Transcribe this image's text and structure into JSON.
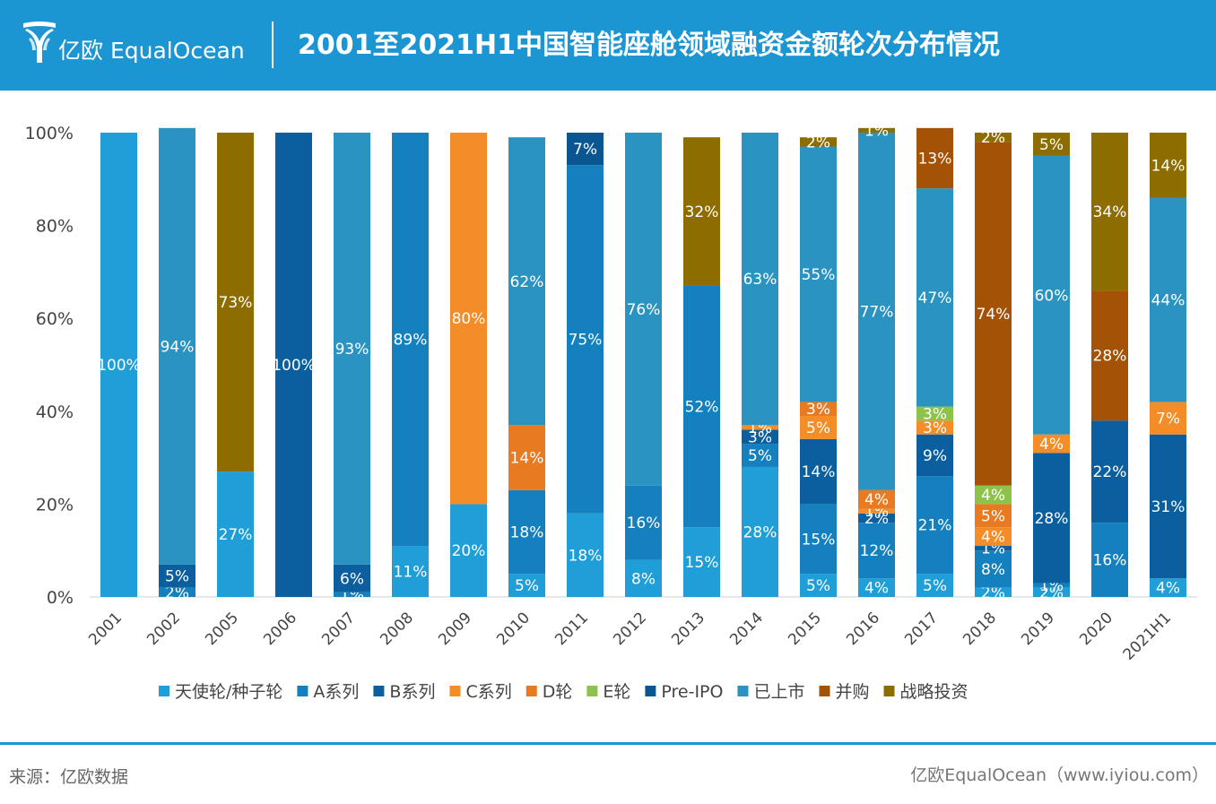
{
  "header": {
    "brand": "亿欧 EqualOcean",
    "title": "2001至2021H1中国智能座舱领域融资金额轮次分布情况"
  },
  "footer": {
    "source": "来源：亿欧数据",
    "credit": "亿欧EqualOcean（www.iyiou.com）"
  },
  "colors": {
    "header_bg": "#1b96d3"
  },
  "chart_data": {
    "type": "bar",
    "stacked": true,
    "ylim": [
      0,
      100
    ],
    "y_ticks": [
      "0%",
      "20%",
      "40%",
      "60%",
      "80%",
      "100%"
    ],
    "categories": [
      "2001",
      "2002",
      "2005",
      "2006",
      "2007",
      "2008",
      "2009",
      "2010",
      "2011",
      "2012",
      "2013",
      "2014",
      "2015",
      "2016",
      "2017",
      "2018",
      "2019",
      "2020",
      "2021H1"
    ],
    "legend_position": "bottom",
    "series": [
      {
        "name": "天使轮/种子轮",
        "color": "#1f9ed8",
        "values": [
          100,
          0,
          27,
          0,
          0,
          11,
          20,
          5,
          18,
          8,
          15,
          28,
          5,
          4,
          5,
          2,
          2,
          0,
          4
        ]
      },
      {
        "name": "A系列",
        "color": "#1480be",
        "values": [
          0,
          2,
          0,
          0,
          1,
          89,
          0,
          18,
          75,
          16,
          52,
          5,
          15,
          12,
          21,
          8,
          1,
          16,
          0
        ]
      },
      {
        "name": "B系列",
        "color": "#0b5f9e",
        "values": [
          0,
          5,
          0,
          100,
          6,
          0,
          0,
          0,
          0,
          0,
          0,
          3,
          14,
          2,
          9,
          1,
          28,
          22,
          31
        ]
      },
      {
        "name": "C系列",
        "color": "#f48c27",
        "values": [
          0,
          0,
          0,
          0,
          0,
          0,
          80,
          0,
          0,
          0,
          0,
          1,
          5,
          1,
          3,
          4,
          4,
          0,
          7
        ]
      },
      {
        "name": "D轮",
        "color": "#e87a22",
        "values": [
          0,
          0,
          0,
          0,
          0,
          0,
          0,
          14,
          0,
          0,
          0,
          0,
          3,
          4,
          0,
          5,
          0,
          0,
          0
        ]
      },
      {
        "name": "E轮",
        "color": "#8dc24b",
        "values": [
          0,
          0,
          0,
          0,
          0,
          0,
          0,
          0,
          0,
          0,
          0,
          0,
          0,
          0,
          3,
          4,
          0,
          0,
          0
        ]
      },
      {
        "name": "Pre-IPO",
        "color": "#0a5690",
        "values": [
          0,
          0,
          0,
          0,
          0,
          0,
          0,
          0,
          7,
          0,
          0,
          0,
          0,
          0,
          0,
          0,
          0,
          0,
          0
        ]
      },
      {
        "name": "已上市",
        "color": "#2b93c1",
        "values": [
          0,
          94,
          0,
          0,
          93,
          0,
          0,
          62,
          0,
          76,
          0,
          63,
          55,
          77,
          47,
          0,
          60,
          0,
          44
        ]
      },
      {
        "name": "并购",
        "color": "#a45206",
        "values": [
          0,
          0,
          0,
          0,
          0,
          0,
          0,
          0,
          0,
          0,
          0,
          0,
          0,
          0,
          13,
          74,
          0,
          28,
          0
        ]
      },
      {
        "name": "战略投资",
        "color": "#8d6c00",
        "values": [
          0,
          0,
          73,
          0,
          0,
          0,
          0,
          0,
          0,
          0,
          32,
          0,
          2,
          1,
          0,
          2,
          5,
          34,
          14
        ]
      }
    ]
  }
}
